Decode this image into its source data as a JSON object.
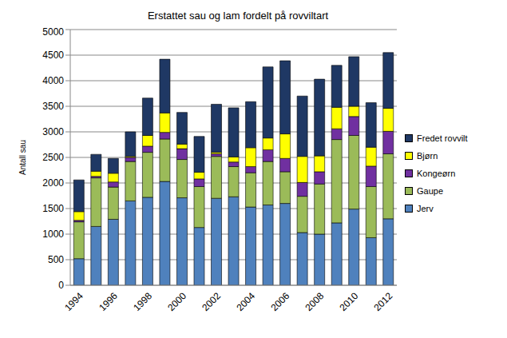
{
  "chart_data": {
    "type": "bar",
    "stacked": true,
    "title": "Erstattet sau og lam fordelt på rovviltart",
    "y_label": "Antall sau",
    "categories": [
      "1994",
      null,
      "1996",
      null,
      "1998",
      null,
      "2000",
      null,
      "2002",
      null,
      "2004",
      null,
      "2006",
      null,
      "2008",
      null,
      "2010",
      null,
      "2012"
    ],
    "series": [
      {
        "name": "Jerv",
        "color": "#4f81bd",
        "values": [
          520,
          1150,
          1290,
          1650,
          1720,
          2030,
          1710,
          1130,
          1700,
          1730,
          1530,
          1570,
          1600,
          1030,
          1000,
          1220,
          1490,
          930,
          1300
        ]
      },
      {
        "name": "Gaupe",
        "color": "#9bbb59",
        "values": [
          720,
          950,
          630,
          770,
          880,
          830,
          750,
          800,
          820,
          590,
          670,
          850,
          620,
          710,
          980,
          1630,
          1440,
          1000,
          1270
        ]
      },
      {
        "name": "Kongeørn",
        "color": "#7030a0",
        "values": [
          30,
          30,
          100,
          80,
          120,
          130,
          210,
          150,
          50,
          90,
          120,
          230,
          260,
          270,
          240,
          210,
          370,
          400,
          440
        ]
      },
      {
        "name": "Bjørn",
        "color": "#ffff00",
        "values": [
          170,
          100,
          170,
          20,
          210,
          380,
          90,
          130,
          30,
          100,
          370,
          230,
          480,
          510,
          310,
          420,
          200,
          370,
          450
        ]
      },
      {
        "name": "Fredet rovvilt",
        "color": "#1f3864",
        "values": [
          620,
          330,
          290,
          480,
          730,
          1050,
          620,
          700,
          940,
          960,
          900,
          1390,
          1430,
          1180,
          1500,
          820,
          970,
          870,
          1090
        ]
      }
    ],
    "ylim": [
      0,
      5000
    ],
    "yticks": [
      0,
      500,
      1000,
      1500,
      2000,
      2500,
      3000,
      3500,
      4000,
      4500,
      5000
    ],
    "grid": true,
    "legend": "right"
  }
}
